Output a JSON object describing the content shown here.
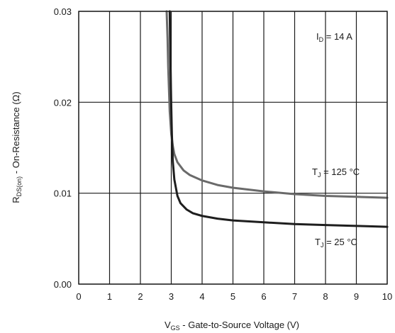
{
  "chart_data": {
    "type": "line",
    "xlabel_main": "V",
    "xlabel_sub": "GS",
    "xlabel_rest": " - Gate-to-Source Voltage (V)",
    "ylabel_main": "R",
    "ylabel_sub": "DS(on)",
    "ylabel_rest": " - On-Resistance (Ω)",
    "xlim": [
      0,
      10
    ],
    "ylim": [
      0,
      0.03
    ],
    "x_ticks": [
      "0",
      "1",
      "2",
      "3",
      "4",
      "5",
      "6",
      "7",
      "8",
      "9",
      "10"
    ],
    "y_ticks": [
      "0.00",
      "0.01",
      "0.02",
      "0.03"
    ],
    "grid": true,
    "annotations": {
      "id_main": "I",
      "id_sub": "D",
      "id_rest": " = 14 A",
      "tj125_main": "T",
      "tj125_sub": "J",
      "tj125_rest": " = 125 °C",
      "tj25_main": "T",
      "tj25_sub": "J",
      "tj25_rest": " = 25 °C"
    },
    "series": [
      {
        "color": "#6a6a6a",
        "x": [
          2.85,
          2.88,
          2.9,
          2.95,
          3.0,
          3.05,
          3.1,
          3.2,
          3.4,
          3.6,
          3.8,
          4.0,
          4.5,
          5.0,
          6.0,
          7.0,
          8.0,
          9.0,
          10.0
        ],
        "y": [
          0.03,
          0.027,
          0.024,
          0.019,
          0.0165,
          0.0152,
          0.0143,
          0.0134,
          0.0125,
          0.012,
          0.0117,
          0.0114,
          0.0109,
          0.0106,
          0.0102,
          0.0099,
          0.0097,
          0.0096,
          0.0095
        ]
      },
      {
        "color": "#1e1e1e",
        "x": [
          2.95,
          2.97,
          3.0,
          3.02,
          3.05,
          3.1,
          3.2,
          3.3,
          3.5,
          3.7,
          4.0,
          4.5,
          5.0,
          6.0,
          7.0,
          8.0,
          9.0,
          10.0
        ],
        "y": [
          0.03,
          0.025,
          0.0195,
          0.0165,
          0.0135,
          0.0115,
          0.0097,
          0.0089,
          0.0082,
          0.0078,
          0.0075,
          0.0072,
          0.007,
          0.0068,
          0.0066,
          0.0065,
          0.0064,
          0.0063
        ]
      }
    ]
  }
}
